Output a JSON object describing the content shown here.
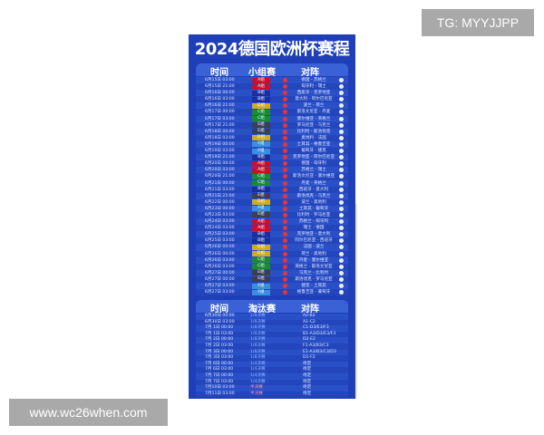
{
  "watermarks": {
    "tg": "TG: MYYJJPP",
    "site": "www.wc26when.com"
  },
  "poster": {
    "title": "2024德国欧洲杯赛程",
    "group_header": {
      "time": "时间",
      "stage": "小组赛",
      "match": "对阵"
    },
    "knockout_header": {
      "time": "时间",
      "stage": "淘汰赛",
      "match": "对阵"
    },
    "group_colors": {
      "A组": "#c8102e",
      "B组": "#1b2f9a",
      "C组": "#1a8a3a",
      "D组": "#cfae1e",
      "E组": "#3a3f55",
      "F组": "#3a8ee0"
    },
    "group_matches": [
      {
        "time": "6月15日 03:00",
        "group": "A组",
        "match": "德国 - 苏格兰"
      },
      {
        "time": "6月15日 21:00",
        "group": "A组",
        "match": "匈牙利 - 瑞士"
      },
      {
        "time": "6月16日 00:00",
        "group": "B组",
        "match": "西班牙 - 克罗地亚"
      },
      {
        "time": "6月16日 03:00",
        "group": "B组",
        "match": "意大利 - 阿尔巴尼亚"
      },
      {
        "time": "6月16日 21:00",
        "group": "D组",
        "match": "波兰 - 荷兰"
      },
      {
        "time": "6月17日 00:00",
        "group": "C组",
        "match": "斯洛文尼亚 - 丹麦"
      },
      {
        "time": "6月17日 03:00",
        "group": "C组",
        "match": "塞尔维亚 - 英格兰"
      },
      {
        "time": "6月17日 21:00",
        "group": "E组",
        "match": "罗马尼亚 - 乌克兰"
      },
      {
        "time": "6月18日 00:00",
        "group": "E组",
        "match": "比利时 - 斯洛伐克"
      },
      {
        "time": "6月18日 03:00",
        "group": "D组",
        "match": "奥地利 - 法国"
      },
      {
        "time": "6月19日 00:00",
        "group": "F组",
        "match": "土耳其 - 格鲁吉亚"
      },
      {
        "time": "6月19日 03:00",
        "group": "F组",
        "match": "葡萄牙 - 捷克"
      },
      {
        "time": "6月19日 21:00",
        "group": "B组",
        "match": "克罗地亚 - 阿尔巴尼亚"
      },
      {
        "time": "6月20日 00:00",
        "group": "A组",
        "match": "德国 - 匈牙利"
      },
      {
        "time": "6月20日 03:00",
        "group": "A组",
        "match": "苏格兰 - 瑞士"
      },
      {
        "time": "6月20日 21:00",
        "group": "C组",
        "match": "斯洛文尼亚 - 塞尔维亚"
      },
      {
        "time": "6月21日 00:00",
        "group": "C组",
        "match": "丹麦 - 英格兰"
      },
      {
        "time": "6月21日 03:00",
        "group": "B组",
        "match": "西班牙 - 意大利"
      },
      {
        "time": "6月21日 21:00",
        "group": "E组",
        "match": "斯洛伐克 - 乌克兰"
      },
      {
        "time": "6月22日 00:00",
        "group": "D组",
        "match": "波兰 - 奥地利"
      },
      {
        "time": "6月23日 00:00",
        "group": "F组",
        "match": "土耳其 - 葡萄牙"
      },
      {
        "time": "6月23日 03:00",
        "group": "E组",
        "match": "比利时 - 罗马尼亚"
      },
      {
        "time": "6月24日 03:00",
        "group": "A组",
        "match": "苏格兰 - 匈牙利"
      },
      {
        "time": "6月24日 03:00",
        "group": "A组",
        "match": "瑞士 - 德国"
      },
      {
        "time": "6月25日 03:00",
        "group": "B组",
        "match": "克罗地亚 - 意大利"
      },
      {
        "time": "6月25日 03:00",
        "group": "B组",
        "match": "阿尔巴尼亚 - 西班牙"
      },
      {
        "time": "6月26日 00:00",
        "group": "D组",
        "match": "法国 - 波兰"
      },
      {
        "time": "6月26日 00:00",
        "group": "D组",
        "match": "荷兰 - 奥地利"
      },
      {
        "time": "6月26日 03:00",
        "group": "C组",
        "match": "丹麦 - 塞尔维亚"
      },
      {
        "time": "6月26日 03:00",
        "group": "C组",
        "match": "英格兰 - 斯洛文尼亚"
      },
      {
        "time": "6月27日 00:00",
        "group": "E组",
        "match": "乌克兰 - 比利时"
      },
      {
        "time": "6月27日 00:00",
        "group": "E组",
        "match": "斯洛伐克 - 罗马尼亚"
      },
      {
        "time": "6月27日 03:00",
        "group": "F组",
        "match": "捷克 - 土耳其"
      },
      {
        "time": "6月27日 03:00",
        "group": "F组",
        "match": "格鲁吉亚 - 葡萄牙"
      }
    ],
    "knockout_matches": [
      {
        "time": "6月30日 00:00",
        "round": "1/8决赛",
        "match": "A2-B2"
      },
      {
        "time": "6月30日 03:00",
        "round": "1/8决赛",
        "match": "A1-C2"
      },
      {
        "time": "7月 1日 00:00",
        "round": "1/8决赛",
        "match": "C1-D3/E3/F3"
      },
      {
        "time": "7月 1日 03:00",
        "round": "1/8决赛",
        "match": "B1-A3/D3/E3/F3"
      },
      {
        "time": "7月 2日 00:00",
        "round": "1/8决赛",
        "match": "D2-E2"
      },
      {
        "time": "7月 2日 03:00",
        "round": "1/8决赛",
        "match": "F1-A3/B3/C3"
      },
      {
        "time": "7月 3日 00:00",
        "round": "1/8决赛",
        "match": "E1-A3/B3/C3/D3"
      },
      {
        "time": "7月 3日 03:00",
        "round": "1/8决赛",
        "match": "D1-F2"
      },
      {
        "time": "7月 6日 00:00",
        "round": "1/4决赛",
        "match": "待定"
      },
      {
        "time": "7月 6日 03:00",
        "round": "1/4决赛",
        "match": "待定"
      },
      {
        "time": "7月 7日 00:00",
        "round": "1/4决赛",
        "match": "待定"
      },
      {
        "time": "7月 7日 03:00",
        "round": "1/4决赛",
        "match": "待定"
      },
      {
        "time": "7月10日 03:00",
        "round": "半决赛",
        "match": "待定"
      },
      {
        "time": "7月11日 03:00",
        "round": "半决赛",
        "match": "待定"
      }
    ]
  }
}
